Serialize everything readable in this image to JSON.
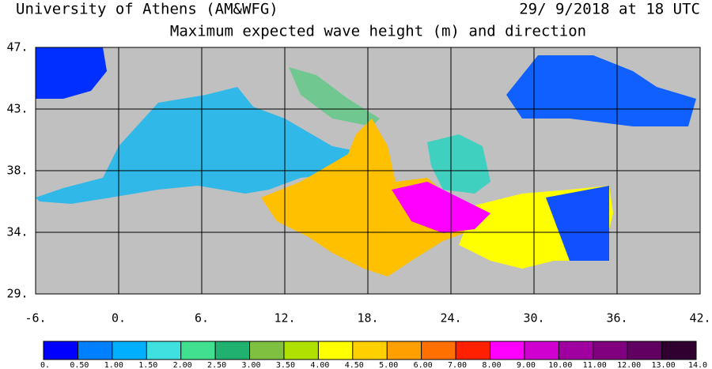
{
  "header": {
    "source": "University of Athens (AM&WFG)",
    "date": "29/ 9/2018 at 18 UTC",
    "title": "Maximum expected wave height (m) and direction"
  },
  "map": {
    "lat_labels": [
      "47.",
      "43.",
      "38.",
      "34.",
      "29."
    ],
    "lon_labels": [
      "-6.",
      "0.",
      "6.",
      "12.",
      "18.",
      "24.",
      "30.",
      "36.",
      "42."
    ]
  },
  "legend": {
    "colors": [
      "#0000ff",
      "#0080ff",
      "#00b0ff",
      "#40e0e0",
      "#40e090",
      "#20b070",
      "#80c040",
      "#b0e000",
      "#ffff00",
      "#ffd000",
      "#ffa000",
      "#ff7000",
      "#ff2000",
      "#ff00ff",
      "#d000d0",
      "#a000a0",
      "#800080",
      "#600060",
      "#300030"
    ],
    "labels": [
      "0.",
      "0.50",
      "1.00",
      "1.50",
      "2.00",
      "2.50",
      "3.00",
      "3.50",
      "4.00",
      "4.50",
      "5.00",
      "6.00",
      "7.00",
      "8.00",
      "9.00",
      "10.00",
      "11.00",
      "12.00",
      "13.00",
      "14.0"
    ]
  }
}
